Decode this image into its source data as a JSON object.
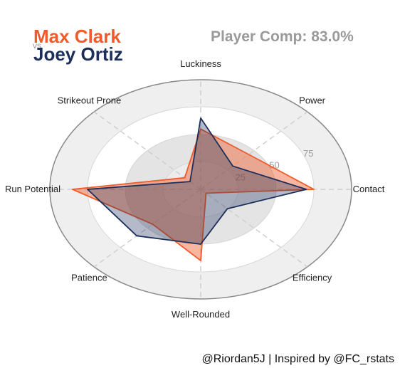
{
  "header": {
    "player1_name": "Max Clark",
    "vs_text": "vs",
    "player2_name": "Joey Ortiz",
    "comp_text": "Player Comp: 83.0%"
  },
  "footer": {
    "credit": "@Riordan5J | Inspired by @FC_rstats"
  },
  "colors": {
    "player1": "#EF5B2B",
    "player2": "#1C2F5A",
    "vs": "#9a9a9a",
    "comp": "#9a9a9a"
  },
  "chart_data": {
    "type": "radar",
    "axes": [
      "Luckiness",
      "Power",
      "Contact",
      "Efficiency",
      "Well-Rounded",
      "Patience",
      "Run Potential",
      "Strikeout Prone"
    ],
    "rings": [
      25,
      50,
      75
    ],
    "ring_labels": [
      "25",
      "50",
      "75"
    ],
    "rmax": 100,
    "series": [
      {
        "name": "Max Clark",
        "values": [
          55,
          45,
          75,
          5,
          65,
          45,
          85,
          15
        ]
      },
      {
        "name": "Joey Ortiz",
        "values": [
          65,
          30,
          70,
          25,
          50,
          60,
          75,
          10
        ]
      }
    ]
  }
}
